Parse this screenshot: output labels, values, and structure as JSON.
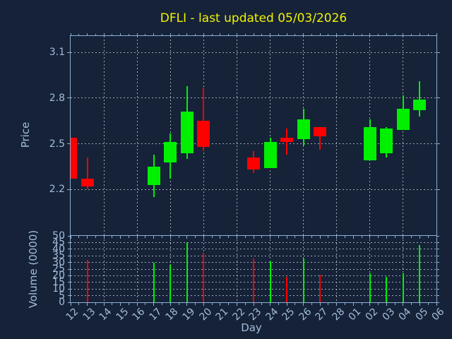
{
  "title": {
    "text": "DFLI - last updated 05/03/2026"
  },
  "colors": {
    "background": "#152238",
    "axis": "#8cb0d4",
    "tick_label": "#a3bdd8",
    "grid": "#c3cbd3",
    "up": "#00f000",
    "down": "#ff0000",
    "title": "#f2f200"
  },
  "chart_data": {
    "type": "candlestick",
    "title": "DFLI - last updated 05/03/2026",
    "xlabel": "Day",
    "grid": true,
    "x_ticklabels": [
      "12",
      "13",
      "14",
      "15",
      "16",
      "17",
      "18",
      "19",
      "20",
      "21",
      "22",
      "23",
      "24",
      "25",
      "26",
      "27",
      "28",
      "01",
      "02",
      "03",
      "04",
      "05",
      "06"
    ],
    "panels": {
      "price": {
        "ylabel": "Price",
        "ytick_labels": [
          "3.1",
          "2.8",
          "2.5",
          "2.2"
        ],
        "yticks": [
          3.1,
          2.8,
          2.5,
          2.2
        ],
        "ylim": [
          1.9,
          3.208
        ]
      },
      "volume": {
        "ylabel": "Volume (0000)",
        "yticks": [
          50,
          45,
          40,
          35,
          30,
          25,
          20,
          15,
          10,
          5,
          0
        ],
        "ylim": [
          0,
          50
        ]
      }
    },
    "ohlcv": [
      {
        "day": "12",
        "open": 2.54,
        "high": 2.54,
        "low": 2.27,
        "close": 2.27,
        "volume": null
      },
      {
        "day": "13",
        "open": 2.27,
        "high": 2.41,
        "low": 2.2,
        "close": 2.22,
        "volume": 32
      },
      {
        "day": "17",
        "open": 2.23,
        "high": 2.43,
        "low": 2.15,
        "close": 2.35,
        "volume": 30
      },
      {
        "day": "18",
        "open": 2.38,
        "high": 2.57,
        "low": 2.27,
        "close": 2.51,
        "volume": 28
      },
      {
        "day": "19",
        "open": 2.44,
        "high": 2.88,
        "low": 2.4,
        "close": 2.71,
        "volume": 45
      },
      {
        "day": "20",
        "open": 2.65,
        "high": 2.87,
        "low": 2.45,
        "close": 2.48,
        "volume": 37
      },
      {
        "day": "23",
        "open": 2.41,
        "high": 2.45,
        "low": 2.31,
        "close": 2.33,
        "volume": 33
      },
      {
        "day": "24",
        "open": 2.34,
        "high": 2.54,
        "low": 2.34,
        "close": 2.51,
        "volume": 31
      },
      {
        "day": "25",
        "open": 2.54,
        "high": 2.6,
        "low": 2.43,
        "close": 2.51,
        "volume": 19
      },
      {
        "day": "26",
        "open": 2.53,
        "high": 2.73,
        "low": 2.49,
        "close": 2.66,
        "volume": 33
      },
      {
        "day": "27",
        "open": 2.61,
        "high": 2.61,
        "low": 2.46,
        "close": 2.55,
        "volume": 21
      },
      {
        "day": "02",
        "open": 2.39,
        "high": 2.66,
        "low": 2.39,
        "close": 2.61,
        "volume": 22
      },
      {
        "day": "03",
        "open": 2.44,
        "high": 2.61,
        "low": 2.41,
        "close": 2.6,
        "volume": 19
      },
      {
        "day": "04",
        "open": 2.59,
        "high": 2.82,
        "low": 2.59,
        "close": 2.73,
        "volume": 22
      },
      {
        "day": "05",
        "open": 2.72,
        "high": 2.91,
        "low": 2.68,
        "close": 2.79,
        "volume": 43
      }
    ]
  }
}
